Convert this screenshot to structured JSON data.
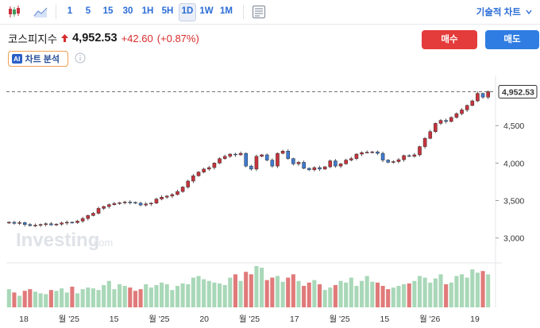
{
  "toolbar": {
    "timeframes": [
      "1",
      "5",
      "15",
      "30",
      "1H",
      "5H",
      "1D",
      "1W",
      "1M"
    ],
    "active_timeframe": "1D",
    "chart_type_label": "기술적 차트",
    "icons": [
      "candlestick-icon",
      "area-chart-icon",
      "save-layout-icon"
    ]
  },
  "instrument": {
    "name": "코스피지수",
    "price": "4,952.53",
    "change": "+42.60",
    "change_pct": "(+0.87%)",
    "up_color": "#d92b2b"
  },
  "actions": {
    "buy_label": "매수",
    "sell_label": "매도"
  },
  "analysis": {
    "badge": "AI",
    "label": "차트 분석"
  },
  "watermark": {
    "brand": "Investing",
    "suffix": ".com"
  },
  "chart_data": {
    "type": "candlestick",
    "y_ticks": [
      "3,000",
      "3,500",
      "4,000",
      "4,500"
    ],
    "y_tick_values": [
      3000,
      3500,
      4000,
      4500
    ],
    "ylim": [
      2710,
      5170
    ],
    "last_price_label": "4,952.53",
    "last_price": 4952.53,
    "x_tick_labels": [
      "18",
      "월 '25",
      "15",
      "월 '25",
      "20",
      "월 '25",
      "17",
      "월 '25",
      "15",
      "월 '26",
      "19"
    ],
    "close": [
      3210,
      3195,
      3205,
      3180,
      3165,
      3170,
      3180,
      3190,
      3175,
      3185,
      3200,
      3210,
      3205,
      3225,
      3260,
      3300,
      3330,
      3395,
      3420,
      3445,
      3460,
      3470,
      3480,
      3475,
      3465,
      3440,
      3455,
      3465,
      3520,
      3545,
      3560,
      3580,
      3620,
      3680,
      3760,
      3830,
      3880,
      3920,
      3940,
      4000,
      4060,
      4090,
      4120,
      4110,
      4130,
      3960,
      3920,
      4090,
      4110,
      4040,
      3960,
      4130,
      4160,
      4060,
      3990,
      4010,
      3930,
      3910,
      3940,
      3920,
      3950,
      4030,
      3960,
      3990,
      4040,
      4060,
      4120,
      4140,
      4145,
      4150,
      4130,
      4040,
      4010,
      4020,
      4045,
      4100,
      4090,
      4110,
      4220,
      4330,
      4420,
      4530,
      4570,
      4555,
      4610,
      4660,
      4710,
      4770,
      4830,
      4930,
      4880,
      4952.53
    ],
    "volume": [
      22,
      18,
      14,
      20,
      22,
      19,
      17,
      16,
      21,
      20,
      23,
      18,
      25,
      17,
      22,
      24,
      23,
      21,
      27,
      32,
      22,
      28,
      26,
      24,
      20,
      22,
      28,
      24,
      27,
      30,
      28,
      21,
      26,
      29,
      28,
      36,
      38,
      34,
      32,
      30,
      29,
      27,
      36,
      40,
      32,
      43,
      40,
      50,
      48,
      33,
      36,
      38,
      31,
      36,
      40,
      32,
      26,
      30,
      33,
      28,
      21,
      24,
      27,
      32,
      30,
      36,
      26,
      32,
      38,
      31,
      30,
      26,
      22,
      24,
      26,
      28,
      29,
      32,
      38,
      36,
      30,
      35,
      40,
      28,
      30,
      38,
      40,
      36,
      46,
      42,
      44,
      40
    ],
    "colors": {
      "up": "#c8323c",
      "down": "#3f7bd1",
      "vol_up": "#a9d8b8",
      "vol_down": "#e07a7a"
    }
  }
}
